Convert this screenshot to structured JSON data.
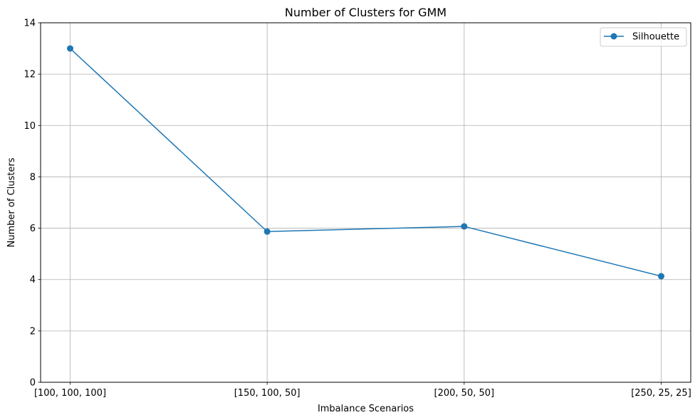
{
  "chart_data": {
    "type": "line",
    "title": "Number of Clusters for GMM",
    "xlabel": "Imbalance Scenarios",
    "ylabel": "Number of Clusters",
    "categories": [
      "[100, 100, 100]",
      "[150, 100, 50]",
      "[200, 50, 50]",
      "[250, 25, 25]"
    ],
    "series": [
      {
        "name": "Silhouette",
        "values": [
          13.0,
          5.87,
          6.07,
          4.13
        ],
        "color": "#1f77b4",
        "marker": "circle"
      }
    ],
    "ylim": [
      0,
      14
    ],
    "yticks": [
      0,
      2,
      4,
      6,
      8,
      10,
      12,
      14
    ],
    "grid": true,
    "legend": "top-right"
  }
}
